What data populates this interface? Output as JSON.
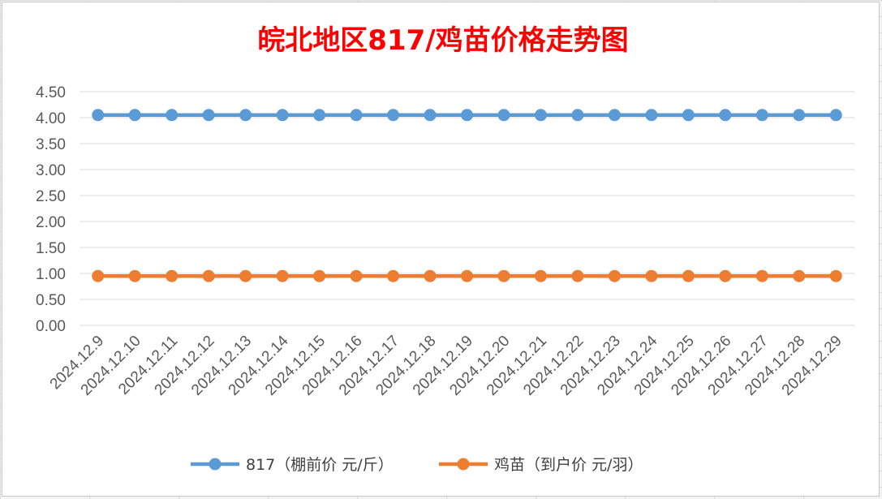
{
  "chart_data": {
    "type": "line",
    "title": "皖北地区817/鸡苗价格走势图",
    "categories": [
      "2024.12.9",
      "2024.12.10",
      "2024.12.11",
      "2024.12.12",
      "2024.12.13",
      "2024.12.14",
      "2024.12.15",
      "2024.12.16",
      "2024.12.17",
      "2024.12.18",
      "2024.12.19",
      "2024.12.20",
      "2024.12.21",
      "2024.12.22",
      "2024.12.23",
      "2024.12.24",
      "2024.12.25",
      "2024.12.26",
      "2024.12.27",
      "2024.12.28",
      "2024.12.29"
    ],
    "yticks": [
      "0.00",
      "0.50",
      "1.00",
      "1.50",
      "2.00",
      "2.50",
      "3.00",
      "3.50",
      "4.00",
      "4.50"
    ],
    "ylim": [
      0,
      4.5
    ],
    "grid": true,
    "legend_position": "bottom",
    "series": [
      {
        "name": "817（棚前价 元/斤）",
        "color": "#5b9bd5",
        "values": [
          4.05,
          4.05,
          4.05,
          4.05,
          4.05,
          4.05,
          4.05,
          4.05,
          4.05,
          4.05,
          4.05,
          4.05,
          4.05,
          4.05,
          4.05,
          4.05,
          4.05,
          4.05,
          4.05,
          4.05,
          4.05
        ]
      },
      {
        "name": "鸡苗（到户价 元/羽）",
        "color": "#ed7d31",
        "values": [
          0.95,
          0.95,
          0.95,
          0.95,
          0.95,
          0.95,
          0.95,
          0.95,
          0.95,
          0.95,
          0.95,
          0.95,
          0.95,
          0.95,
          0.95,
          0.95,
          0.95,
          0.95,
          0.95,
          0.95,
          0.95
        ]
      }
    ]
  }
}
